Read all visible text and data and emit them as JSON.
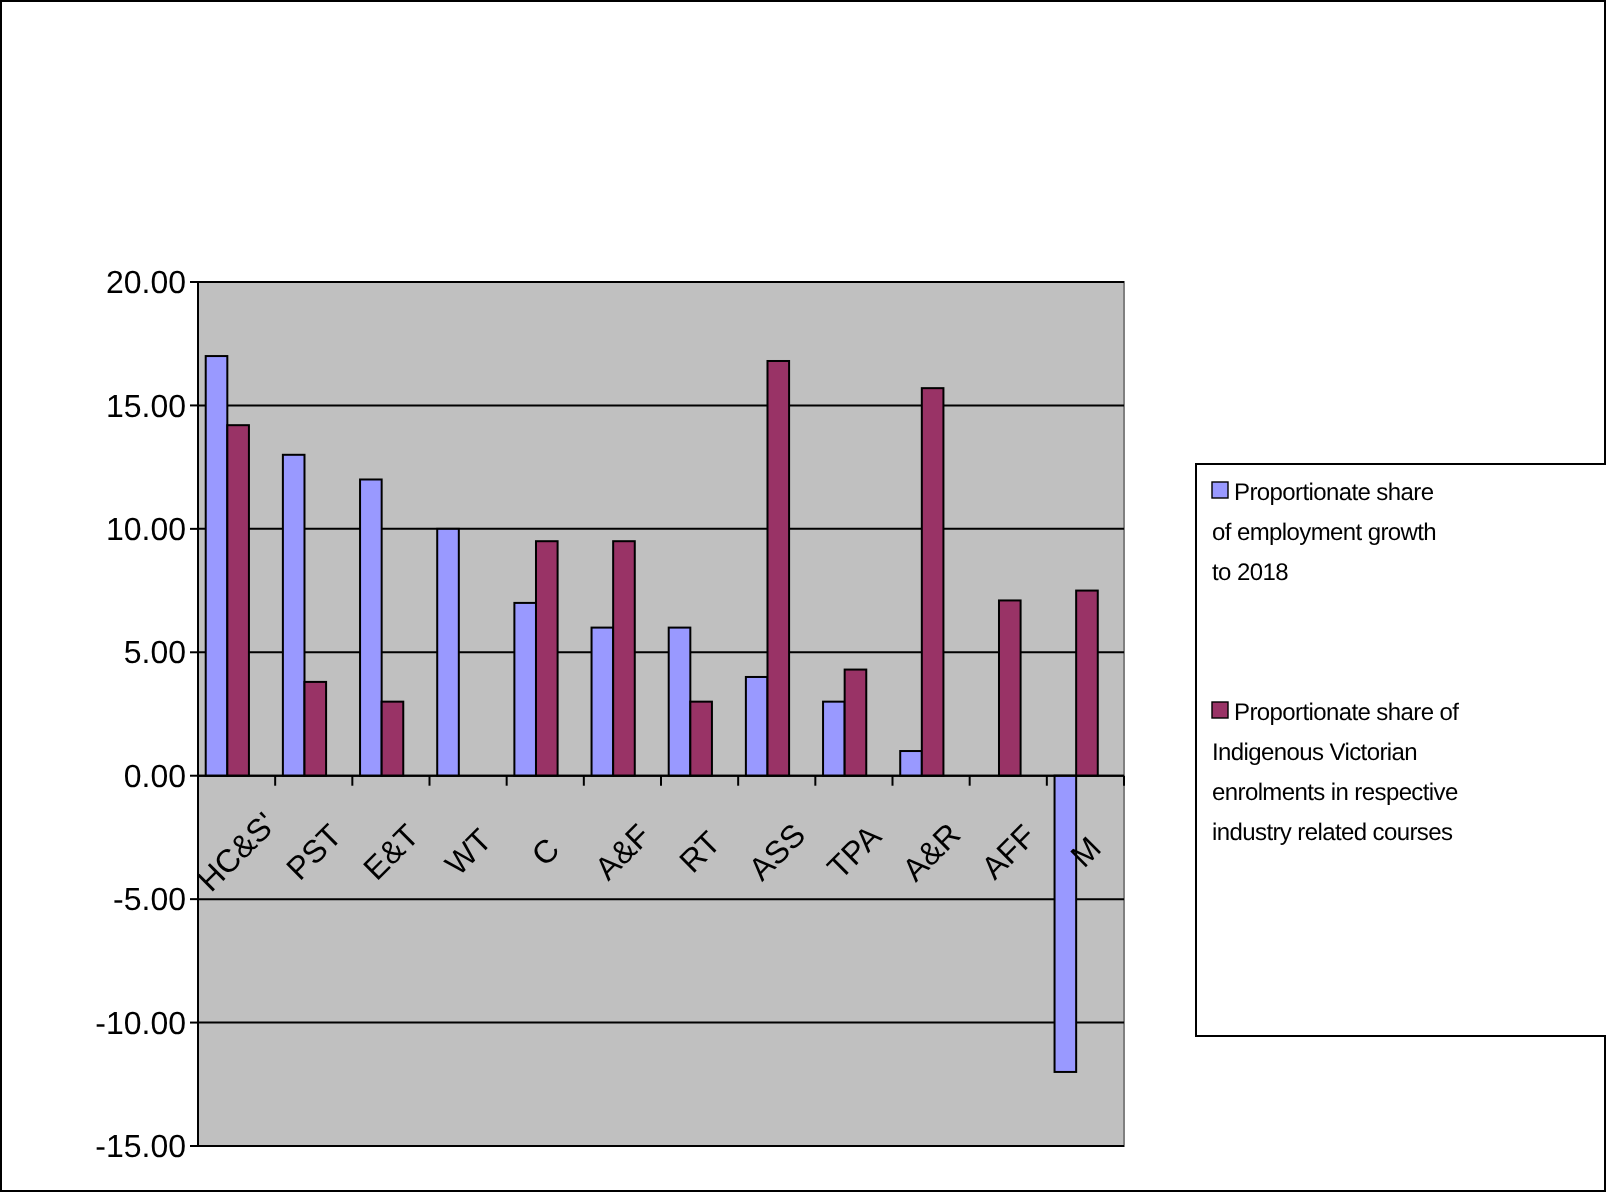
{
  "chart_data": {
    "type": "bar",
    "categories": [
      "HC&S'",
      "PST",
      "E&T",
      "WT",
      "C",
      "A&F",
      "RT",
      "ASS",
      "TPA",
      "A&R",
      "AFF",
      "M"
    ],
    "series": [
      {
        "name": "Proportionate share of employment growth to 2018",
        "color": "#9999ff",
        "values": [
          17,
          13,
          12,
          10,
          7,
          6,
          6,
          4,
          3,
          1,
          null,
          -12
        ]
      },
      {
        "name": "Proportionate share of Indigenous Victorian enrolments in respective industry related courses",
        "color": "#993366",
        "values": [
          14.2,
          3.8,
          3.0,
          null,
          9.5,
          9.5,
          3.0,
          16.8,
          4.3,
          15.7,
          7.1,
          7.5
        ]
      }
    ],
    "ylim": [
      -15,
      20
    ],
    "yticks": [
      {
        "value": -15,
        "label": "-15.00"
      },
      {
        "value": -10,
        "label": "-10.00"
      },
      {
        "value": -5,
        "label": "-5.00"
      },
      {
        "value": 0,
        "label": "0.00"
      },
      {
        "value": 5,
        "label": "5.00"
      },
      {
        "value": 10,
        "label": "10.00"
      },
      {
        "value": 15,
        "label": "15.00"
      },
      {
        "value": 20,
        "label": "20.00"
      }
    ],
    "grid": "y",
    "legend": "right"
  }
}
